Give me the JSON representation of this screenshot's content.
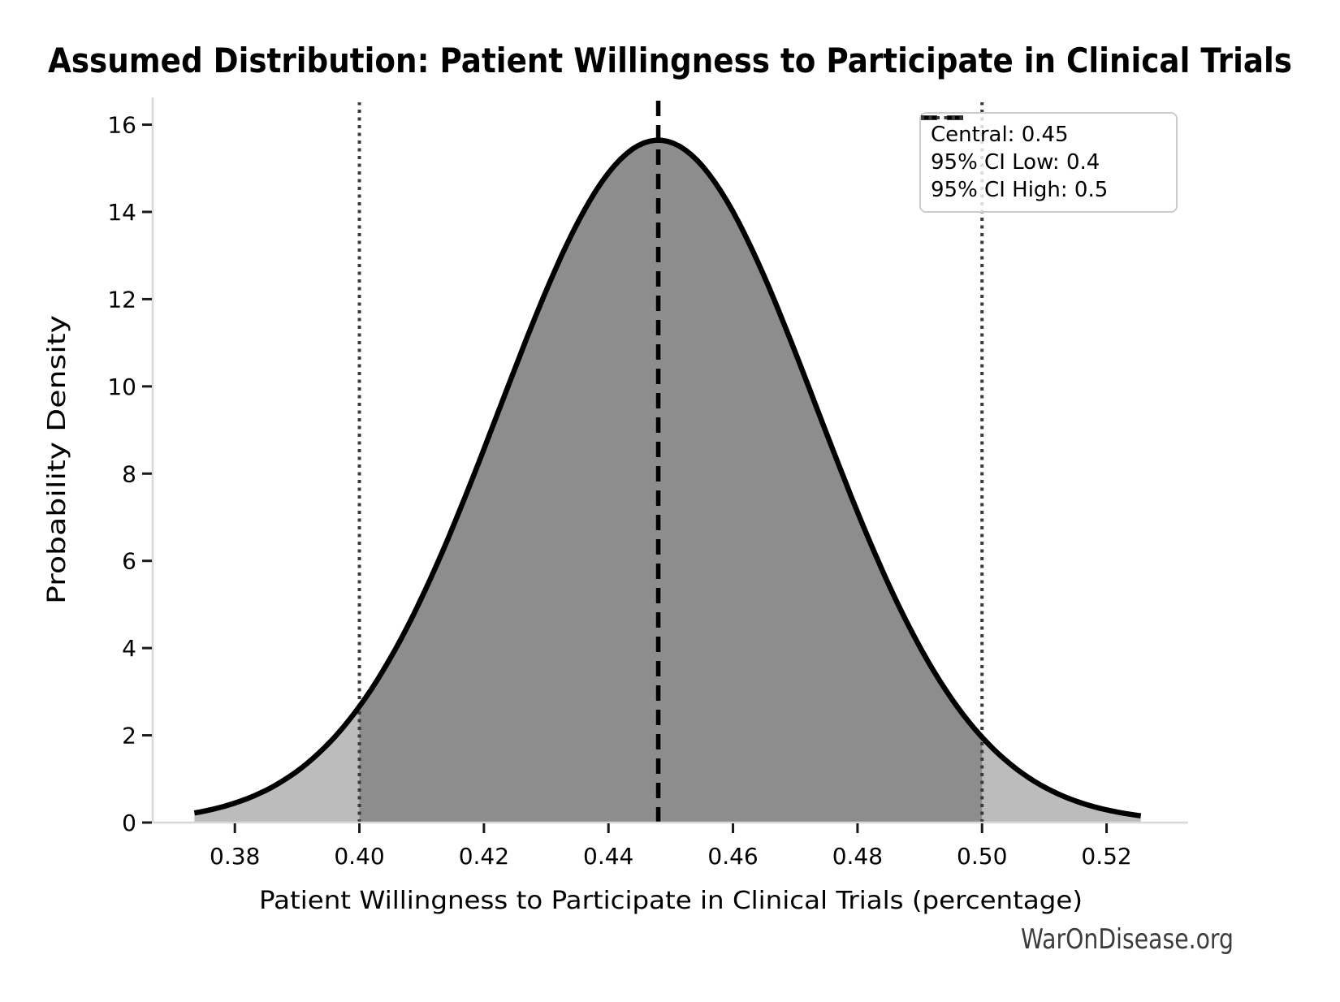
{
  "chart_data": {
    "type": "area",
    "title": "Assumed Distribution: Patient Willingness to Participate in Clinical Trials",
    "xlabel": "Patient Willingness to Participate in Clinical Trials (percentage)",
    "ylabel": "Probability Density",
    "watermark": "WarOnDisease.org",
    "grid": false,
    "legend_position": "upper right",
    "xlim": [
      0.3668,
      0.5331
    ],
    "ylim": [
      0,
      16.55
    ],
    "x_ticks": [
      0.38,
      0.4,
      0.42,
      0.44,
      0.46,
      0.48,
      0.5,
      0.52
    ],
    "y_ticks": [
      0,
      2,
      4,
      6,
      8,
      10,
      12,
      14,
      16
    ],
    "central": 0.45,
    "ci_low": 0.4,
    "ci_high": 0.5,
    "distribution": {
      "family": "normal",
      "mean": 0.448,
      "sigma": 0.0255,
      "peak_density": 15.645,
      "x_start": 0.3735,
      "x_end": 0.5255
    },
    "series": [
      {
        "name": "probability density",
        "x": [
          0.38,
          0.39,
          0.4,
          0.41,
          0.42,
          0.43,
          0.44,
          0.45,
          0.46,
          0.47,
          0.48,
          0.49,
          0.5,
          0.51,
          0.52
        ],
        "y": [
          0.45,
          1.17,
          2.66,
          5.16,
          8.56,
          12.2,
          14.89,
          15.6,
          14.0,
          10.78,
          7.12,
          4.03,
          1.96,
          0.82,
          0.29
        ]
      }
    ],
    "legend": [
      {
        "label": "Central: 0.45",
        "style": "dashed",
        "color": "#000000"
      },
      {
        "label": "95% CI Low: 0.4",
        "style": "dotted",
        "color": "#3a3a3a"
      },
      {
        "label": "95% CI High: 0.5",
        "style": "dotted",
        "color": "#3a3a3a"
      }
    ],
    "colors": {
      "curve": "#000000",
      "fill_tail": "#bcbcbc",
      "fill_ci": "#8d8d8d",
      "central_line": "#000000",
      "ci_line": "#3a3a3a",
      "spine": "#d8d8d8",
      "tick": "#1a1a1a",
      "text": "#000000",
      "watermark": "#3c3c3c",
      "legend_border": "#cbcbcb"
    }
  }
}
